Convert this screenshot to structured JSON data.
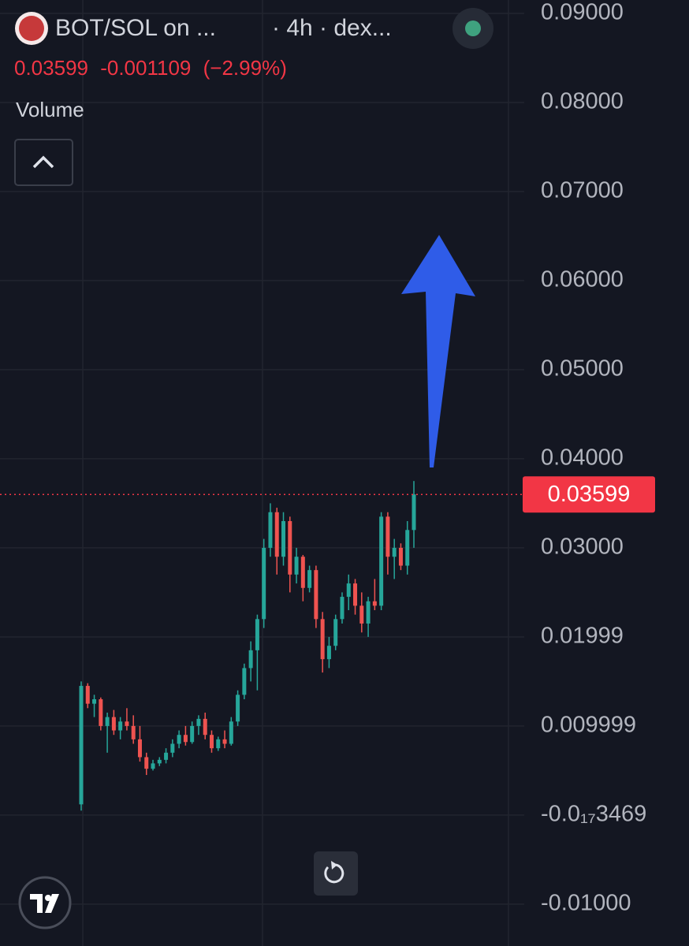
{
  "header": {
    "pair": "BOT/SOL on ...",
    "interval": "· 4h · dex...",
    "change": -0.001109,
    "change_pct": {
      "value": -2.99,
      "label": "(−2.99%)"
    },
    "volume_label": "Volume"
  },
  "chart_data": {
    "type": "candlestick",
    "up_color": "#26a69a",
    "down_color": "#ef5350",
    "grid": true,
    "ylim": [
      -0.0147,
      0.0915
    ],
    "yticks": [
      {
        "value": 0.09,
        "label": "0.09000"
      },
      {
        "value": 0.08,
        "label": "0.08000"
      },
      {
        "value": 0.07,
        "label": "0.07000"
      },
      {
        "value": 0.06,
        "label": "0.06000"
      },
      {
        "value": 0.05,
        "label": "0.05000"
      },
      {
        "value": 0.04,
        "label": "0.04000"
      },
      {
        "value": 0.03,
        "label": "0.03000"
      },
      {
        "value": 0.01999,
        "label": "0.01999"
      },
      {
        "value": 0.009999,
        "label": "0.009999"
      },
      {
        "value": -3.469e-18,
        "label": "-0.0₁₇3469"
      },
      {
        "value": -0.01,
        "label": "-0.01000"
      }
    ],
    "last_price": {
      "value": 0.03599,
      "label": "0.03599"
    },
    "open": [
      0.0012,
      0.0145,
      0.0125,
      0.013,
      0.01,
      0.011,
      0.0095,
      0.0105,
      0.01,
      0.0085,
      0.0065,
      0.0052,
      0.0058,
      0.0062,
      0.007,
      0.008,
      0.009,
      0.0082,
      0.01,
      0.0108,
      0.009,
      0.0075,
      0.0085,
      0.008,
      0.0105,
      0.0135,
      0.0165,
      0.0185,
      0.022,
      0.03,
      0.034,
      0.029,
      0.033,
      0.027,
      0.029,
      0.0255,
      0.0275,
      0.022,
      0.0175,
      0.019,
      0.022,
      0.0245,
      0.026,
      0.0235,
      0.0215,
      0.024,
      0.0235,
      0.0335,
      0.029,
      0.03,
      0.028,
      0.032
    ],
    "high": [
      0.015,
      0.0148,
      0.0135,
      0.0132,
      0.0115,
      0.0118,
      0.011,
      0.012,
      0.0112,
      0.01,
      0.007,
      0.0062,
      0.0065,
      0.0075,
      0.0085,
      0.0095,
      0.01,
      0.0105,
      0.0112,
      0.0115,
      0.0095,
      0.0088,
      0.0095,
      0.011,
      0.014,
      0.017,
      0.0195,
      0.0225,
      0.031,
      0.035,
      0.0345,
      0.034,
      0.0335,
      0.03,
      0.0292,
      0.028,
      0.028,
      0.0228,
      0.02,
      0.0225,
      0.025,
      0.027,
      0.0265,
      0.025,
      0.0245,
      0.0265,
      0.034,
      0.034,
      0.031,
      0.0305,
      0.033,
      0.0375
    ],
    "low": [
      0.0005,
      0.012,
      0.011,
      0.0095,
      0.007,
      0.009,
      0.0085,
      0.0095,
      0.008,
      0.006,
      0.0045,
      0.005,
      0.0055,
      0.0058,
      0.0065,
      0.0075,
      0.0078,
      0.008,
      0.009,
      0.0085,
      0.007,
      0.0072,
      0.0075,
      0.0078,
      0.01,
      0.013,
      0.015,
      0.014,
      0.021,
      0.029,
      0.027,
      0.028,
      0.025,
      0.026,
      0.024,
      0.025,
      0.021,
      0.016,
      0.0165,
      0.0185,
      0.0215,
      0.023,
      0.0225,
      0.0205,
      0.02,
      0.023,
      0.023,
      0.027,
      0.0265,
      0.0275,
      0.027,
      0.03
    ],
    "close": [
      0.0145,
      0.0125,
      0.013,
      0.01,
      0.011,
      0.0095,
      0.0105,
      0.01,
      0.0085,
      0.0065,
      0.0052,
      0.0058,
      0.0062,
      0.007,
      0.008,
      0.009,
      0.0082,
      0.01,
      0.0108,
      0.009,
      0.0075,
      0.0085,
      0.008,
      0.0105,
      0.0135,
      0.0165,
      0.0185,
      0.022,
      0.03,
      0.034,
      0.029,
      0.033,
      0.027,
      0.029,
      0.0255,
      0.0275,
      0.022,
      0.0175,
      0.019,
      0.022,
      0.0245,
      0.026,
      0.0235,
      0.0215,
      0.024,
      0.0235,
      0.0335,
      0.029,
      0.03,
      0.028,
      0.032,
      0.036
    ]
  }
}
